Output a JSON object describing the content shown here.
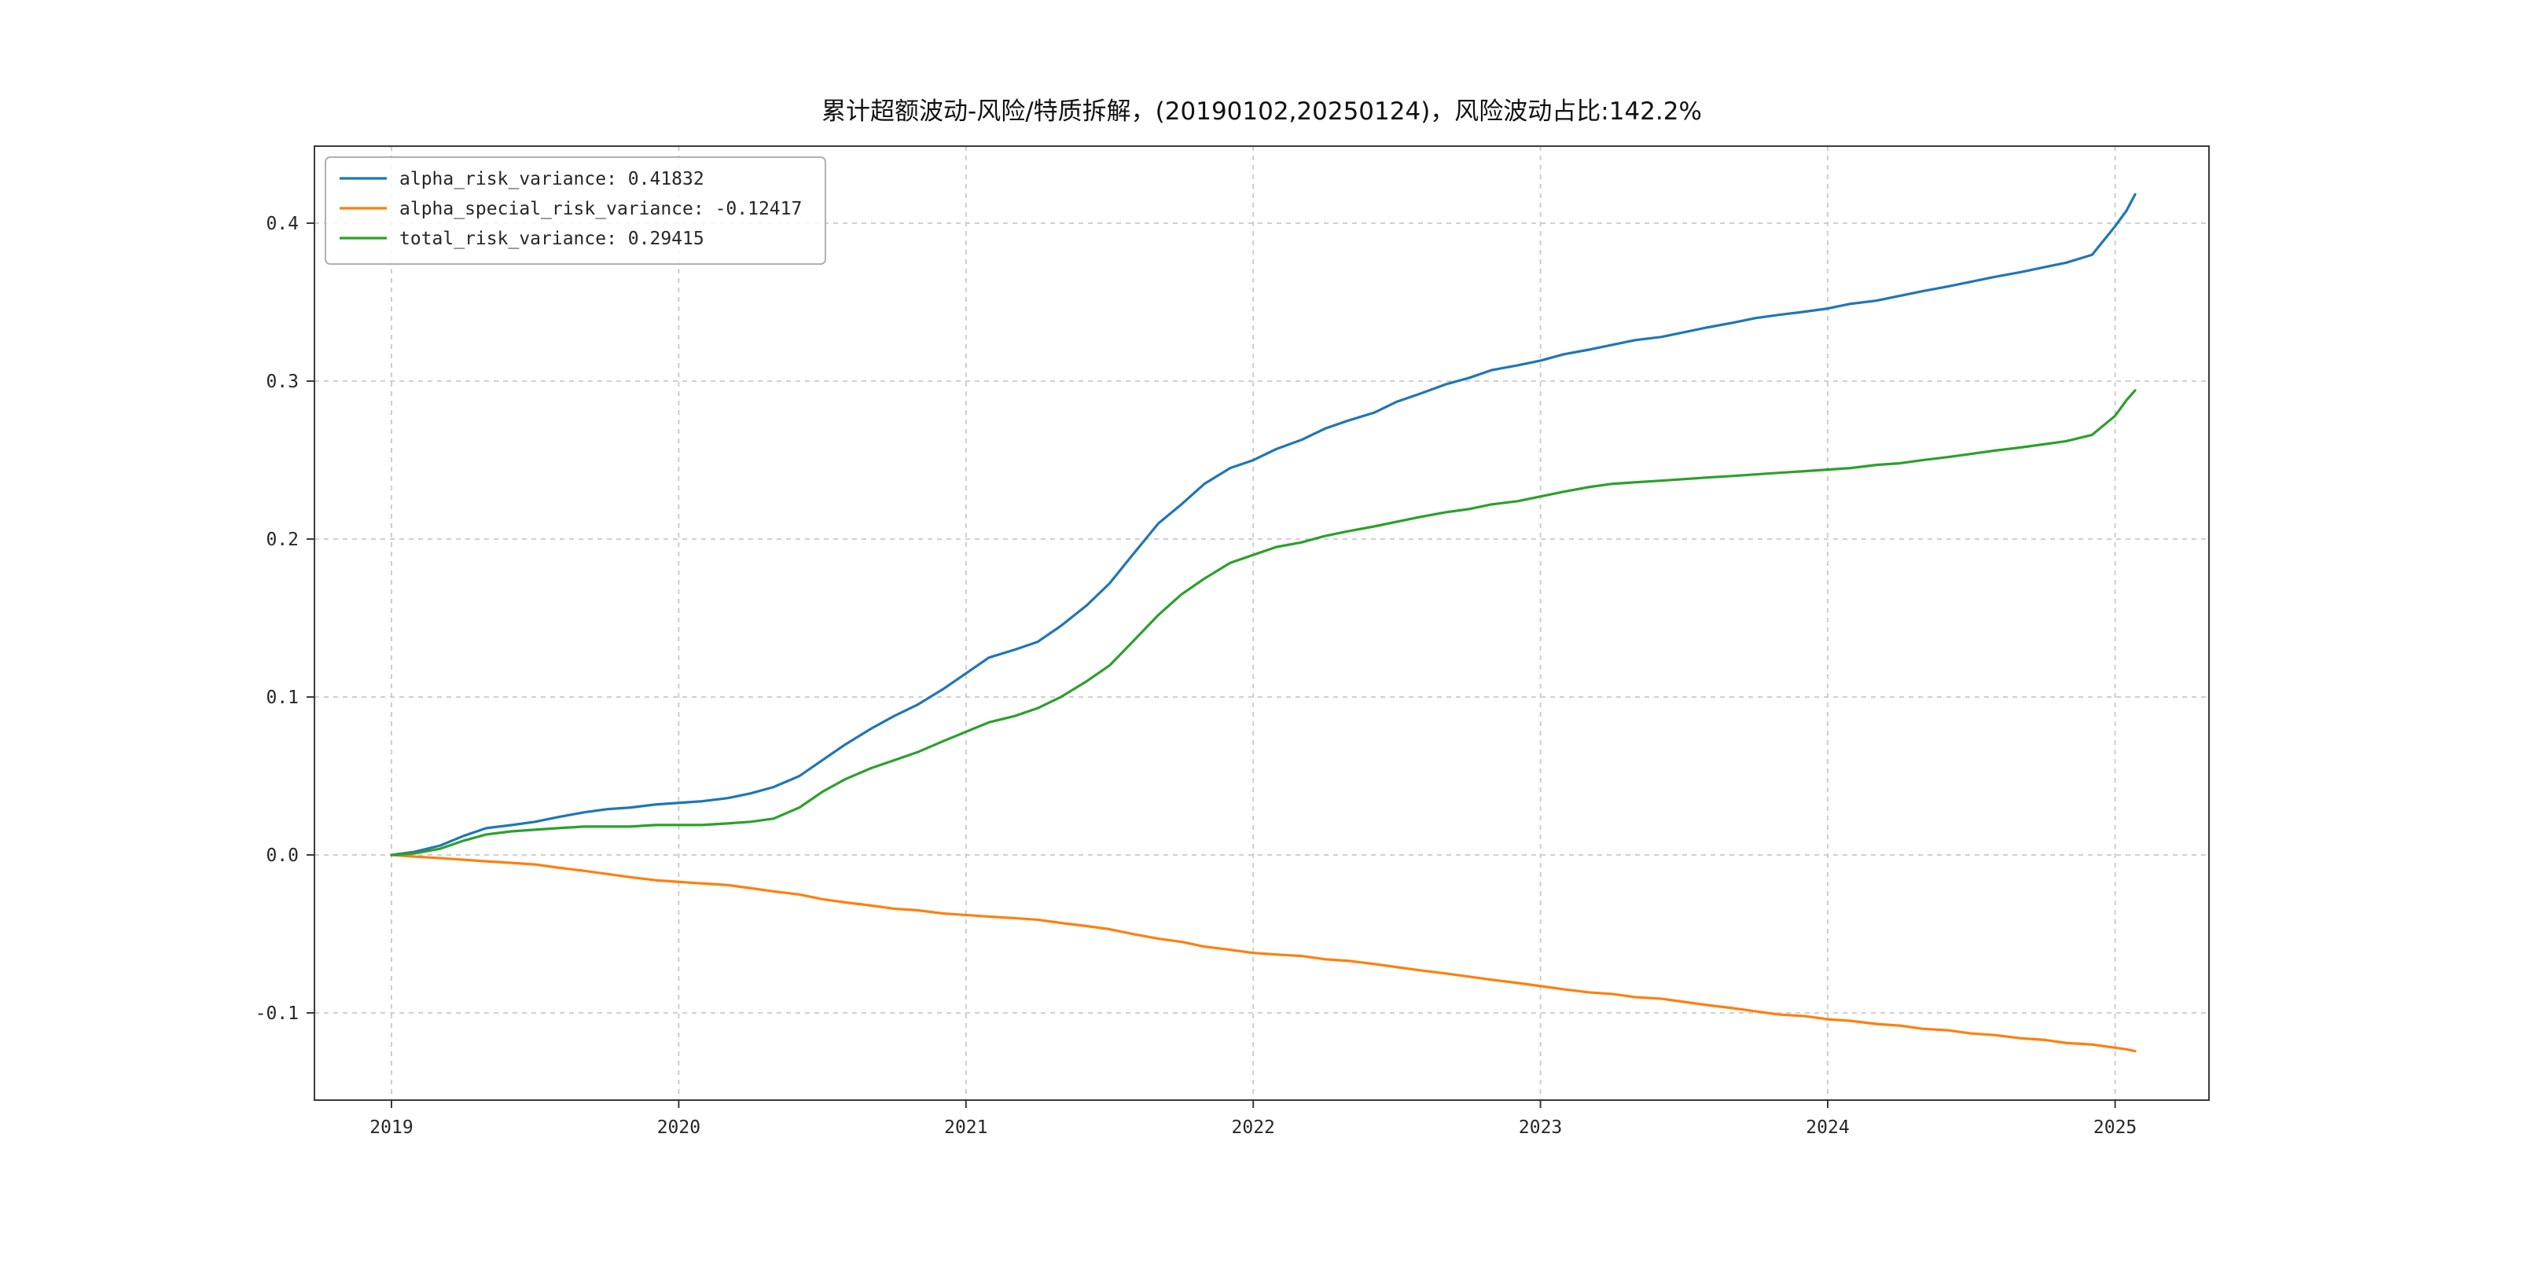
{
  "page": {
    "background": "#ffffff"
  },
  "chart_data": {
    "type": "line",
    "title": "累计超额波动-风险/特质拆解，(20190102,20250124)，风险波动占比:142.2%",
    "xlabel": "",
    "ylabel": "",
    "grid": true,
    "grid_style": "dashed",
    "legend_position": "upper left",
    "xlim": [
      2018.732,
      2025.327
    ],
    "ylim": [
      -0.1552,
      0.4488
    ],
    "xticks": [
      {
        "value": 2019,
        "label": "2019"
      },
      {
        "value": 2020,
        "label": "2020"
      },
      {
        "value": 2021,
        "label": "2021"
      },
      {
        "value": 2022,
        "label": "2022"
      },
      {
        "value": 2023,
        "label": "2023"
      },
      {
        "value": 2024,
        "label": "2024"
      },
      {
        "value": 2025,
        "label": "2025"
      }
    ],
    "yticks": [
      {
        "value": -0.1,
        "label": "-0.1"
      },
      {
        "value": 0.0,
        "label": "0.0"
      },
      {
        "value": 0.1,
        "label": "0.1"
      },
      {
        "value": 0.2,
        "label": "0.2"
      },
      {
        "value": 0.3,
        "label": "0.3"
      },
      {
        "value": 0.4,
        "label": "0.4"
      }
    ],
    "x": [
      2019.0,
      2019.08,
      2019.17,
      2019.25,
      2019.33,
      2019.42,
      2019.5,
      2019.58,
      2019.67,
      2019.75,
      2019.83,
      2019.92,
      2020.0,
      2020.08,
      2020.17,
      2020.25,
      2020.33,
      2020.42,
      2020.5,
      2020.58,
      2020.67,
      2020.75,
      2020.83,
      2020.92,
      2021.0,
      2021.08,
      2021.17,
      2021.25,
      2021.33,
      2021.42,
      2021.5,
      2021.58,
      2021.67,
      2021.75,
      2021.83,
      2021.92,
      2022.0,
      2022.08,
      2022.17,
      2022.25,
      2022.33,
      2022.42,
      2022.5,
      2022.58,
      2022.67,
      2022.75,
      2022.83,
      2022.92,
      2023.0,
      2023.08,
      2023.17,
      2023.25,
      2023.33,
      2023.42,
      2023.5,
      2023.58,
      2023.67,
      2023.75,
      2023.83,
      2023.92,
      2024.0,
      2024.08,
      2024.17,
      2024.25,
      2024.33,
      2024.42,
      2024.5,
      2024.58,
      2024.67,
      2024.75,
      2024.83,
      2024.92,
      2025.0,
      2025.04,
      2025.07
    ],
    "series": [
      {
        "name": "alpha_risk_variance",
        "legend_label": "alpha_risk_variance: 0.41832",
        "final_value": 0.41832,
        "color": "#1f77b4",
        "values": [
          0.0,
          0.002,
          0.006,
          0.012,
          0.017,
          0.019,
          0.021,
          0.024,
          0.027,
          0.029,
          0.03,
          0.032,
          0.033,
          0.034,
          0.036,
          0.039,
          0.043,
          0.05,
          0.06,
          0.07,
          0.08,
          0.088,
          0.095,
          0.105,
          0.115,
          0.125,
          0.13,
          0.135,
          0.145,
          0.158,
          0.172,
          0.19,
          0.21,
          0.222,
          0.235,
          0.245,
          0.25,
          0.257,
          0.263,
          0.27,
          0.275,
          0.28,
          0.287,
          0.292,
          0.298,
          0.302,
          0.307,
          0.31,
          0.313,
          0.317,
          0.32,
          0.323,
          0.326,
          0.328,
          0.331,
          0.334,
          0.337,
          0.34,
          0.342,
          0.344,
          0.346,
          0.349,
          0.351,
          0.354,
          0.357,
          0.36,
          0.363,
          0.366,
          0.369,
          0.372,
          0.375,
          0.38,
          0.398,
          0.408,
          0.41832
        ]
      },
      {
        "name": "alpha_special_risk_variance",
        "legend_label": "alpha_special_risk_variance: -0.12417",
        "final_value": -0.12417,
        "color": "#ff7f0e",
        "values": [
          0.0,
          -0.001,
          -0.002,
          -0.003,
          -0.004,
          -0.005,
          -0.006,
          -0.008,
          -0.01,
          -0.012,
          -0.014,
          -0.016,
          -0.017,
          -0.018,
          -0.019,
          -0.021,
          -0.023,
          -0.025,
          -0.028,
          -0.03,
          -0.032,
          -0.034,
          -0.035,
          -0.037,
          -0.038,
          -0.039,
          -0.04,
          -0.041,
          -0.043,
          -0.045,
          -0.047,
          -0.05,
          -0.053,
          -0.055,
          -0.058,
          -0.06,
          -0.062,
          -0.063,
          -0.064,
          -0.066,
          -0.067,
          -0.069,
          -0.071,
          -0.073,
          -0.075,
          -0.077,
          -0.079,
          -0.081,
          -0.083,
          -0.085,
          -0.087,
          -0.088,
          -0.09,
          -0.091,
          -0.093,
          -0.095,
          -0.097,
          -0.099,
          -0.101,
          -0.102,
          -0.104,
          -0.105,
          -0.107,
          -0.108,
          -0.11,
          -0.111,
          -0.113,
          -0.114,
          -0.116,
          -0.117,
          -0.119,
          -0.12,
          -0.122,
          -0.123,
          -0.12417
        ]
      },
      {
        "name": "total_risk_variance",
        "legend_label": "total_risk_variance: 0.29415",
        "final_value": 0.29415,
        "color": "#2ca02c",
        "values": [
          0.0,
          0.001,
          0.004,
          0.009,
          0.013,
          0.015,
          0.016,
          0.017,
          0.018,
          0.018,
          0.018,
          0.019,
          0.019,
          0.019,
          0.02,
          0.021,
          0.023,
          0.03,
          0.04,
          0.048,
          0.055,
          0.06,
          0.065,
          0.072,
          0.078,
          0.084,
          0.088,
          0.093,
          0.1,
          0.11,
          0.12,
          0.135,
          0.152,
          0.165,
          0.175,
          0.185,
          0.19,
          0.195,
          0.198,
          0.202,
          0.205,
          0.208,
          0.211,
          0.214,
          0.217,
          0.219,
          0.222,
          0.224,
          0.227,
          0.23,
          0.233,
          0.235,
          0.236,
          0.237,
          0.238,
          0.239,
          0.24,
          0.241,
          0.242,
          0.243,
          0.244,
          0.245,
          0.247,
          0.248,
          0.25,
          0.252,
          0.254,
          0.256,
          0.258,
          0.26,
          0.262,
          0.266,
          0.278,
          0.288,
          0.29415
        ]
      }
    ]
  }
}
